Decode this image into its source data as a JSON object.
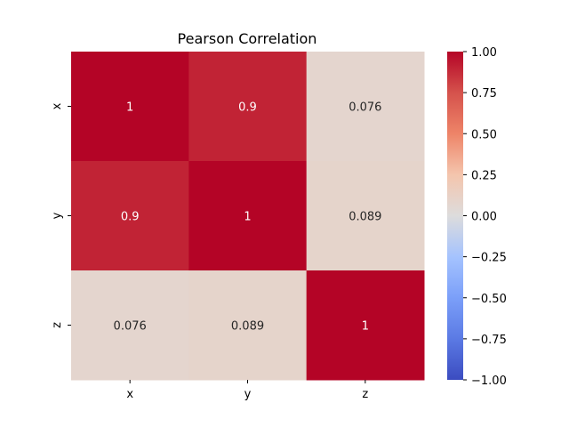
{
  "chart_data": {
    "type": "heatmap",
    "title": "Pearson Correlation",
    "x_categories": [
      "x",
      "y",
      "z"
    ],
    "y_categories": [
      "x",
      "y",
      "z"
    ],
    "values": [
      [
        1,
        0.9,
        0.076
      ],
      [
        0.9,
        1,
        0.089
      ],
      [
        0.076,
        0.089,
        1
      ]
    ],
    "cell_labels": [
      [
        "1",
        "0.9",
        "0.076"
      ],
      [
        "0.9",
        "1",
        "0.089"
      ],
      [
        "0.076",
        "0.089",
        "1"
      ]
    ],
    "colormap": "coolwarm",
    "vmin": -1.0,
    "vmax": 1.0,
    "colorbar_ticks": [
      1.0,
      0.75,
      0.5,
      0.25,
      0.0,
      -0.25,
      -0.5,
      -0.75,
      -1.0
    ],
    "colorbar_tick_labels": [
      "1.00",
      "0.75",
      "0.50",
      "0.25",
      "0.00",
      "−0.25",
      "−0.50",
      "−0.75",
      "−1.00"
    ],
    "grid": false,
    "colorbar_position": "right"
  }
}
